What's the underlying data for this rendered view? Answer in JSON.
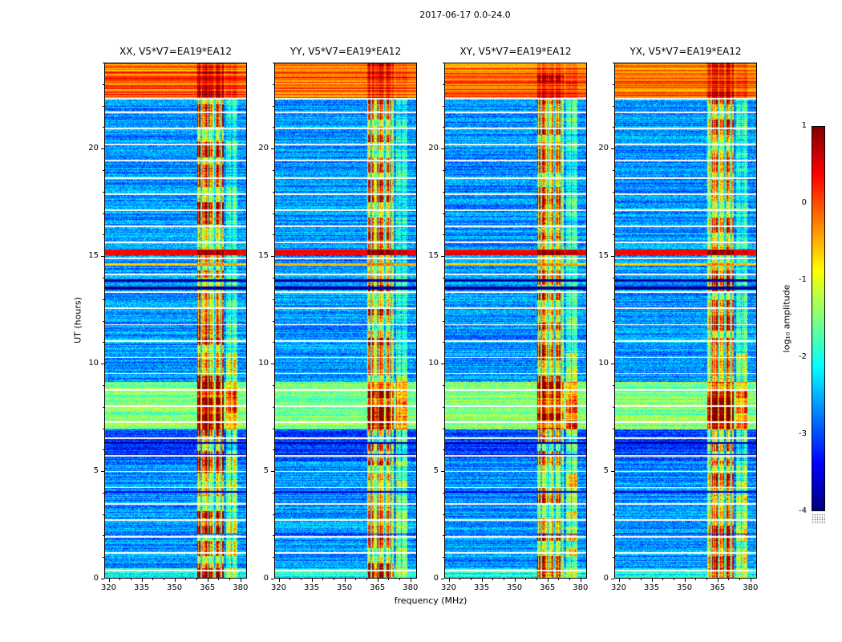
{
  "chart_data": {
    "type": "heatmap",
    "title": "2017-06-17 0.0-24.0",
    "xlabel": "frequency (MHz)",
    "ylabel": "UT (hours)",
    "xlim": [
      318,
      383
    ],
    "ylim": [
      0,
      24
    ],
    "xticks": [
      320,
      335,
      350,
      365,
      380
    ],
    "xtick_minor_step": 5,
    "yticks": [
      0,
      5,
      10,
      15,
      20
    ],
    "ytick_minor_step": 1,
    "panels": [
      {
        "title": "XX, V5*V7=EA19*EA12"
      },
      {
        "title": "YY, V5*V7=EA19*EA12"
      },
      {
        "title": "XY, V5*V7=EA19*EA12"
      },
      {
        "title": "YX, V5*V7=EA19*EA12"
      }
    ],
    "colorbar": {
      "label": "log₁₀ amplitude",
      "ticks": [
        1,
        0,
        -1,
        -2,
        -3,
        -4
      ],
      "vmin": -4,
      "vmax": 1,
      "colormap": "jet"
    },
    "features": {
      "background_level": -2.65,
      "row_noise": 0.35,
      "pixel_noise": 0.45,
      "block_hours": 0.35,
      "gap_width": 0.07,
      "bands_time": [
        {
          "t0": 0.0,
          "t1": 0.5,
          "level": -2.05
        },
        {
          "t0": 5.5,
          "t1": 6.95,
          "level": -3.0
        },
        {
          "t0": 6.95,
          "t1": 9.15,
          "level": -1.5
        }
      ],
      "rfi_bands": [
        {
          "f0": 360.5,
          "f1": 372.5,
          "peak": 2.9,
          "flagged": [
            362.2,
            365.3,
            368.4,
            371.3
          ]
        },
        {
          "f0": 373.5,
          "f1": 378.5,
          "peak": 1.7,
          "fade_after_t": 10.5,
          "fade_factor": 0.55,
          "flagged": [
            375.9
          ]
        }
      ],
      "bright_rows": [
        {
          "t0": 22.35,
          "t1": 24.0,
          "level": -0.15,
          "striation": 0.55
        },
        {
          "t0": 15.05,
          "t1": 15.32,
          "level": 0.4,
          "striation": 0.12
        },
        {
          "t0": 14.55,
          "t1": 14.68,
          "level": -0.6,
          "striation": 0.2
        }
      ],
      "dark_rows": [
        {
          "t0": 13.45,
          "t1": 13.58,
          "level": -3.9
        },
        {
          "t0": 13.8,
          "t1": 13.92,
          "level": -3.9
        },
        {
          "t0": 5.72,
          "t1": 5.78,
          "level": -3.8
        },
        {
          "t0": 6.28,
          "t1": 6.34,
          "level": -3.8
        },
        {
          "t0": 2.05,
          "t1": 2.1,
          "level": -3.5
        },
        {
          "t0": 4.0,
          "t1": 4.05,
          "level": -3.5
        }
      ],
      "data_gaps": [
        0.35,
        1.15,
        1.9,
        2.7,
        3.45,
        4.2,
        4.95,
        5.68,
        6.5,
        7.25,
        8.0,
        8.75,
        9.5,
        10.25,
        11.0,
        11.78,
        12.55,
        13.3,
        14.1,
        14.85,
        15.6,
        16.35,
        17.1,
        17.85,
        18.6,
        19.4,
        20.15,
        20.9,
        21.65,
        22.3
      ]
    }
  }
}
